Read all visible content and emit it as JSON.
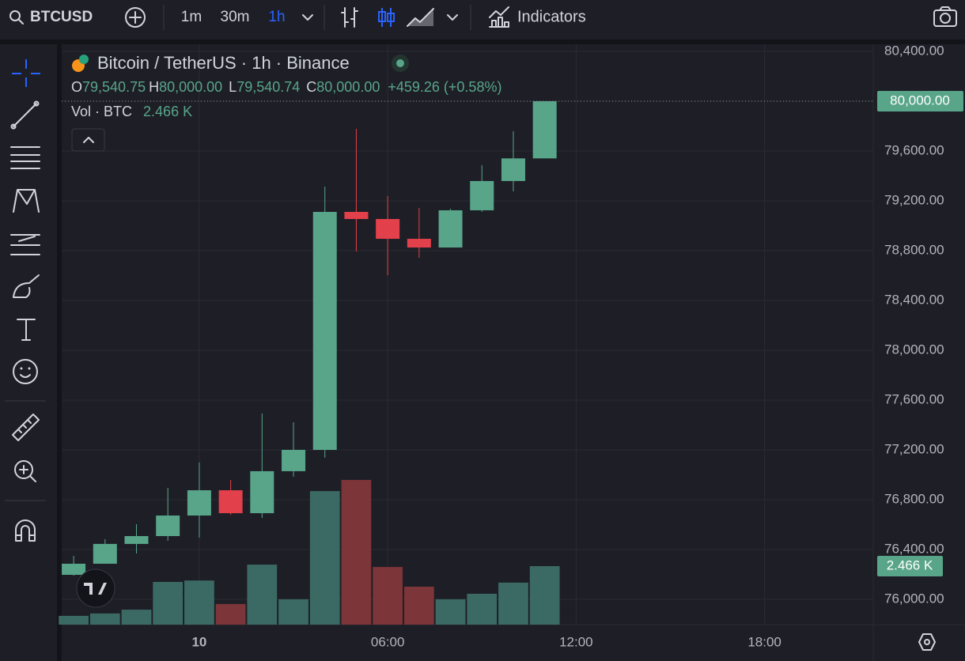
{
  "toolbar": {
    "symbol": "BTCUSD",
    "intervals": [
      "1m",
      "30m",
      "1h"
    ],
    "indicators": "Indicators"
  },
  "legend": {
    "title": "Bitcoin / TetherUS · 1h · Binance",
    "open_key": "O",
    "open": "79,540.75",
    "high_key": "H",
    "high": "80,000.00",
    "low_key": "L",
    "low": "79,540.74",
    "close_key": "C",
    "close": "80,000.00",
    "change": "+459.26 (+0.58%)",
    "volume_key": "Vol · BTC",
    "volume": "2.466 K"
  },
  "chart_data": {
    "type": "candlestick",
    "x": [
      -4,
      -3,
      -2,
      -1,
      0,
      1,
      2,
      3,
      4,
      5,
      6,
      7,
      8,
      9,
      10,
      11
    ],
    "open": [
      76197,
      76286,
      76445,
      76508,
      76673,
      76876,
      76692,
      77029,
      77200,
      79111,
      79054,
      78895,
      78825,
      79124,
      79359,
      79540.75
    ],
    "high": [
      76349,
      76483,
      76603,
      76895,
      77099,
      76959,
      77492,
      77422,
      79314,
      79778,
      79238,
      79143,
      79137,
      79486,
      79759,
      80000
    ],
    "low": [
      76190,
      76286,
      76368,
      76470,
      76495,
      76679,
      76654,
      76984,
      77137,
      78794,
      78603,
      78743,
      78825,
      79111,
      79276,
      79540.74
    ],
    "close": [
      76286,
      76445,
      76508,
      76673,
      76876,
      76692,
      77029,
      77200,
      79111,
      79054,
      78895,
      78825,
      79124,
      79359,
      79540.75,
      80000
    ],
    "volume": [
      0.37,
      0.47,
      0.63,
      1.8,
      1.86,
      0.87,
      2.53,
      1.07,
      5.63,
      6.1,
      2.43,
      1.6,
      1.07,
      1.3,
      1.77,
      2.466
    ],
    "up_color": "#58a58a",
    "down_color": "#e2404b",
    "volume_up_color": "#3b6a64",
    "volume_down_color": "#7c3538",
    "ylim": [
      75797,
      80457
    ],
    "yticks": [
      {
        "value": 80400,
        "label": "80,400.00"
      },
      {
        "value": 80000,
        "label": "80,000.00"
      },
      {
        "value": 79600,
        "label": "79,600.00"
      },
      {
        "value": 79200,
        "label": "79,200.00"
      },
      {
        "value": 78800,
        "label": "78,800.00"
      },
      {
        "value": 78400,
        "label": "78,400.00"
      },
      {
        "value": 78000,
        "label": "78,000.00"
      },
      {
        "value": 77600,
        "label": "77,600.00"
      },
      {
        "value": 77200,
        "label": "77,200.00"
      },
      {
        "value": 76800,
        "label": "76,800.00"
      },
      {
        "value": 76400,
        "label": "76,400.00"
      },
      {
        "value": 76000,
        "label": "76,000.00"
      }
    ],
    "xlim": [
      -4.38,
      21.46
    ],
    "xticks": [
      {
        "value": 0,
        "label": "10"
      },
      {
        "value": 6,
        "label": "06:00"
      },
      {
        "value": 12,
        "label": "12:00"
      },
      {
        "value": 18,
        "label": "18:00"
      }
    ],
    "grid": true,
    "price_tag": "80,000.00",
    "volume_tag": "2.466 K"
  }
}
